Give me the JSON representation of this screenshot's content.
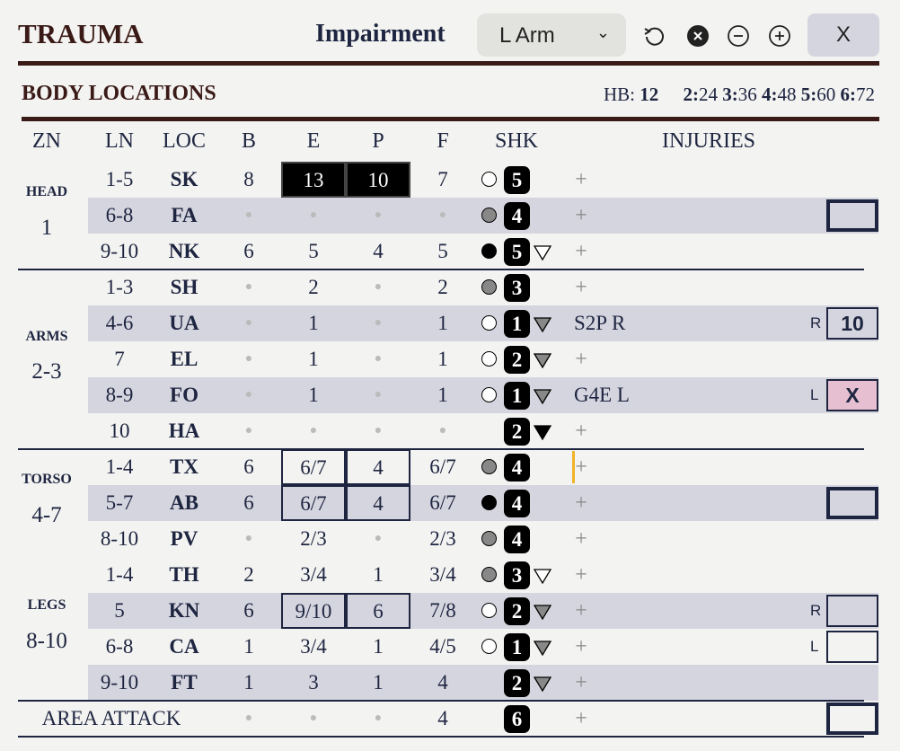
{
  "header": {
    "title": "TRAUMA",
    "impairment_label": "Impairment",
    "impairment_select": "L Arm",
    "close_label": "X",
    "icons": [
      "reset-icon",
      "clear-icon",
      "zoom-out-icon",
      "zoom-in-icon",
      "chevron-down-icon"
    ]
  },
  "section": {
    "title": "BODY LOCATIONS",
    "hb_label": "HB:",
    "hb_value": "12",
    "multiples": [
      {
        "k": "2:",
        "v": "24"
      },
      {
        "k": "3:",
        "v": "36"
      },
      {
        "k": "4:",
        "v": "48"
      },
      {
        "k": "5:",
        "v": "60"
      },
      {
        "k": "6:",
        "v": "72"
      }
    ]
  },
  "columns": [
    "ZN",
    "LN",
    "LOC",
    "B",
    "E",
    "P",
    "F",
    "SHK",
    "INJURIES"
  ],
  "zones": [
    {
      "name": "HEAD",
      "range": "1"
    },
    {
      "name": "ARMS",
      "range": "2-3"
    },
    {
      "name": "TORSO",
      "range": "4-7"
    },
    {
      "name": "LEGS",
      "range": "8-10"
    }
  ],
  "colors": {
    "title": "#3a1a16",
    "text": "#1e2540",
    "shade": "#d5d5df",
    "pink": "#e6bfd0",
    "marker": "#f0b429"
  },
  "rows": [
    {
      "ln": "1-5",
      "loc": "SK",
      "b": "8",
      "e": "13",
      "p": "10",
      "f": "7",
      "circle": "white",
      "shk": "5",
      "tri": "",
      "inj": "",
      "shaded": false,
      "ebox": "filled",
      "side": "",
      "box": ""
    },
    {
      "ln": "6-8",
      "loc": "FA",
      "b": null,
      "e": null,
      "p": null,
      "f": null,
      "circle": "gray",
      "shk": "4",
      "tri": "",
      "inj": "",
      "shaded": true,
      "ebox": "",
      "side": "",
      "box": "thick"
    },
    {
      "ln": "9-10",
      "loc": "NK",
      "b": "6",
      "e": "5",
      "p": "4",
      "f": "5",
      "circle": "black",
      "shk": "5",
      "tri": "white",
      "inj": "",
      "shaded": false,
      "ebox": "",
      "side": "",
      "box": ""
    },
    {
      "ln": "1-3",
      "loc": "SH",
      "b": null,
      "e": "2",
      "p": null,
      "f": "2",
      "circle": "gray",
      "shk": "3",
      "tri": "",
      "inj": "",
      "shaded": false,
      "ebox": "",
      "side": "",
      "box": ""
    },
    {
      "ln": "4-6",
      "loc": "UA",
      "b": null,
      "e": "1",
      "p": null,
      "f": "1",
      "circle": "white",
      "shk": "1",
      "tri": "gray",
      "inj": "S2P R",
      "shaded": true,
      "ebox": "",
      "side": "R",
      "box": "thin",
      "box_value": "10"
    },
    {
      "ln": "7",
      "loc": "EL",
      "b": null,
      "e": "1",
      "p": null,
      "f": "1",
      "circle": "white",
      "shk": "2",
      "tri": "gray",
      "inj": "",
      "shaded": false,
      "ebox": "",
      "side": "",
      "box": ""
    },
    {
      "ln": "8-9",
      "loc": "FO",
      "b": null,
      "e": "1",
      "p": null,
      "f": "1",
      "circle": "white",
      "shk": "1",
      "tri": "gray",
      "inj": "G4E L",
      "shaded": true,
      "ebox": "",
      "side": "L",
      "box": "pink",
      "box_value": "X"
    },
    {
      "ln": "10",
      "loc": "HA",
      "b": null,
      "e": null,
      "p": null,
      "f": null,
      "circle": "",
      "shk": "2",
      "tri": "black",
      "inj": "",
      "shaded": false,
      "ebox": "",
      "side": "",
      "box": ""
    },
    {
      "ln": "1-4",
      "loc": "TX",
      "b": "6",
      "e": "6/7",
      "p": "4",
      "f": "6/7",
      "circle": "gray",
      "shk": "4",
      "tri": "",
      "inj": "",
      "shaded": false,
      "ebox": "outline",
      "side": "",
      "box": "",
      "marker": true
    },
    {
      "ln": "5-7",
      "loc": "AB",
      "b": "6",
      "e": "6/7",
      "p": "4",
      "f": "6/7",
      "circle": "black",
      "shk": "4",
      "tri": "",
      "inj": "",
      "shaded": true,
      "ebox": "outline",
      "side": "",
      "box": "thick"
    },
    {
      "ln": "8-10",
      "loc": "PV",
      "b": null,
      "e": "2/3",
      "p": null,
      "f": "2/3",
      "circle": "gray",
      "shk": "4",
      "tri": "",
      "inj": "",
      "shaded": false,
      "ebox": "",
      "side": "",
      "box": ""
    },
    {
      "ln": "1-4",
      "loc": "TH",
      "b": "2",
      "e": "3/4",
      "p": "1",
      "f": "3/4",
      "circle": "gray",
      "shk": "3",
      "tri": "white",
      "inj": "",
      "shaded": false,
      "ebox": "",
      "side": "",
      "box": ""
    },
    {
      "ln": "5",
      "loc": "KN",
      "b": "6",
      "e": "9/10",
      "p": "6",
      "f": "7/8",
      "circle": "white",
      "shk": "2",
      "tri": "gray",
      "inj": "",
      "shaded": true,
      "ebox": "outline",
      "side": "R",
      "box": "thin"
    },
    {
      "ln": "6-8",
      "loc": "CA",
      "b": "1",
      "e": "3/4",
      "p": "1",
      "f": "4/5",
      "circle": "white",
      "shk": "1",
      "tri": "gray",
      "inj": "",
      "shaded": false,
      "ebox": "",
      "side": "L",
      "box": "white"
    },
    {
      "ln": "9-10",
      "loc": "FT",
      "b": "1",
      "e": "3",
      "p": "1",
      "f": "4",
      "circle": "",
      "shk": "2",
      "tri": "gray",
      "inj": "",
      "shaded": true,
      "ebox": "",
      "side": "",
      "box": ""
    }
  ],
  "area_attack": {
    "label": "AREA ATTACK",
    "b": null,
    "e": null,
    "p": null,
    "f": "4",
    "shk": "6",
    "box": "thick"
  }
}
